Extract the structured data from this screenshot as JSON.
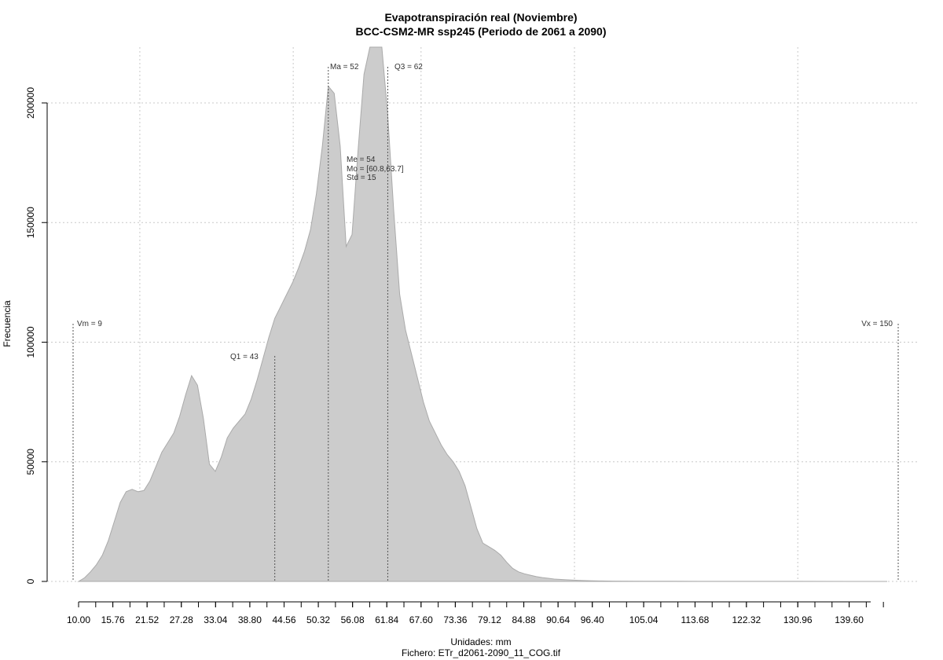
{
  "chart_data": {
    "type": "area",
    "title": "Evapotranspiración real (Noviembre)",
    "subtitle": "BCC-CSM2-MR ssp245 (Periodo de 2061 a 2090)",
    "xlabel": "Unidades: mm",
    "ylabel": "Frecuencia",
    "footer": "Fichero: ETr_d2061-2090_11_COG.tif",
    "xlim": [
      9,
      150
    ],
    "ylim": [
      0,
      220000
    ],
    "grid": true,
    "x_ticks": [
      "10.00",
      "15.76",
      "21.52",
      "27.28",
      "33.04",
      "38.80",
      "44.56",
      "50.32",
      "56.08",
      "61.84",
      "67.60",
      "73.36",
      "79.12",
      "84.88",
      "90.64",
      "96.40",
      "105.04",
      "113.68",
      "122.32",
      "130.96",
      "139.60"
    ],
    "x_tick_values": [
      10.0,
      15.76,
      21.52,
      27.28,
      33.04,
      38.8,
      44.56,
      50.32,
      56.08,
      61.84,
      67.6,
      73.36,
      79.12,
      84.88,
      90.64,
      96.4,
      105.04,
      113.68,
      122.32,
      130.96,
      139.6
    ],
    "y_ticks": [
      "0",
      "50000",
      "100000",
      "150000",
      "200000"
    ],
    "y_tick_values": [
      0,
      50000,
      100000,
      150000,
      200000
    ],
    "series": [
      {
        "x": [
          10,
          11,
          12,
          13,
          14,
          15,
          16,
          17,
          18,
          19,
          20,
          21,
          22,
          23,
          24,
          25,
          26,
          27,
          28,
          29,
          30,
          31,
          32,
          33,
          34,
          35,
          36,
          37,
          38,
          39,
          40,
          41,
          42,
          43,
          44,
          45,
          46,
          47,
          48,
          49,
          50,
          51,
          52,
          53,
          54,
          55,
          56,
          57,
          58,
          59,
          60,
          61,
          62,
          63,
          64,
          65,
          66,
          67,
          68,
          69,
          70,
          71,
          72,
          73,
          74,
          75,
          76,
          77,
          78,
          79,
          80,
          81,
          82,
          83,
          84,
          85,
          86,
          87,
          88,
          89,
          90,
          92,
          94,
          96,
          98,
          100,
          105,
          110,
          120,
          130,
          140,
          146
        ],
        "y": [
          0,
          1500,
          4000,
          7000,
          11000,
          17000,
          25000,
          33000,
          37500,
          38500,
          37500,
          38000,
          42000,
          48000,
          54000,
          58000,
          62000,
          69000,
          78000,
          86000,
          82000,
          68000,
          49000,
          46000,
          52000,
          60000,
          64000,
          67000,
          70000,
          76000,
          84000,
          93000,
          102000,
          110000,
          115000,
          120000,
          125000,
          131000,
          138000,
          147000,
          162000,
          182000,
          207000,
          204000,
          182000,
          140000,
          145000,
          180000,
          212000,
          225000,
          228000,
          225000,
          195000,
          155000,
          120000,
          105000,
          95000,
          85000,
          75000,
          67000,
          62000,
          57000,
          53000,
          50000,
          46000,
          40000,
          31000,
          22000,
          16000,
          14500,
          13000,
          11000,
          8000,
          5500,
          4000,
          3200,
          2600,
          2000,
          1600,
          1300,
          1000,
          700,
          450,
          300,
          200,
          130,
          80,
          50,
          30,
          20,
          10,
          0
        ]
      }
    ],
    "annotations": {
      "vm": {
        "label": "Vm = 9",
        "x": 9
      },
      "vx": {
        "label": "Vx = 150",
        "x": 150
      },
      "q1": {
        "label": "Q1 = 43",
        "x": 43
      },
      "ma": {
        "label": "Ma = 52",
        "x": 52
      },
      "q3": {
        "label": "Q3 = 62",
        "x": 62
      },
      "me": "Me = 54",
      "mo": "Mo = [60.8,63.7]",
      "std": "Std = 15"
    }
  }
}
